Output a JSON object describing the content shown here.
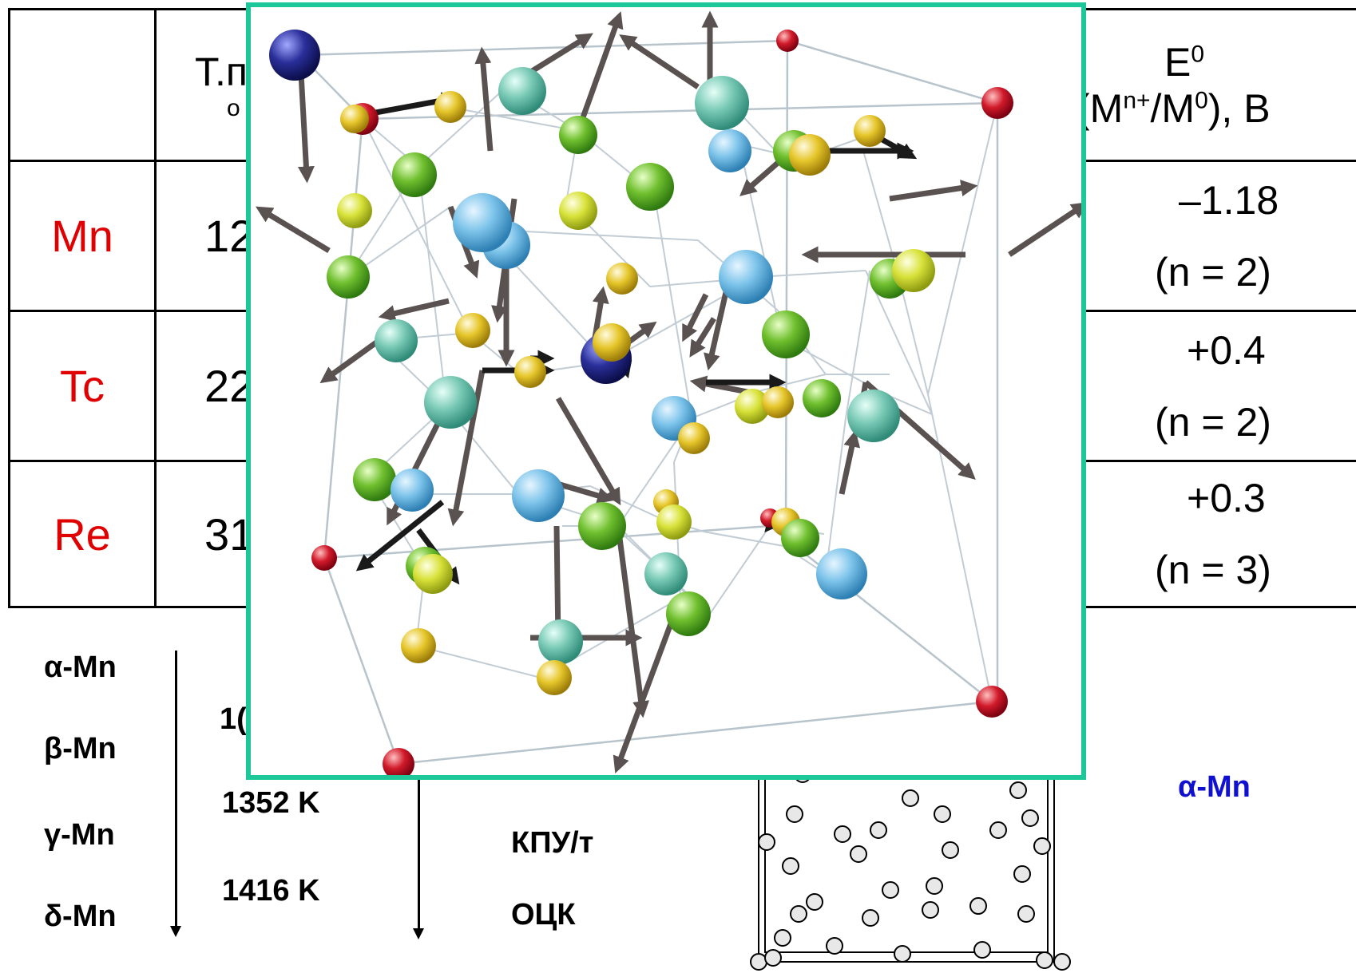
{
  "table": {
    "header": {
      "col2_line1": "T.п",
      "col2_line2": "о",
      "e0_line1": "E",
      "e0_sup": "0",
      "e0_line2_a": "(M",
      "e0_sup2": "n+",
      "e0_line2_b": "/M",
      "e0_sup3": "0",
      "e0_line2_c": "), B"
    },
    "rows": [
      {
        "element": "Mn",
        "partial": "12",
        "e0": "–1.18",
        "n": "(n = 2)"
      },
      {
        "element": "Tc",
        "partial": "22",
        "e0": "+0.4",
        "n": "(n = 2)"
      },
      {
        "element": "Re",
        "partial": "31",
        "e0": "+0.3",
        "n": "(n = 3)"
      }
    ]
  },
  "phases": [
    {
      "name": "α-Mn"
    },
    {
      "name": "β-Mn"
    },
    {
      "name": "γ-Mn"
    },
    {
      "name": "δ-Mn"
    }
  ],
  "temperatures": {
    "partial": "1(",
    "t3": "1352 K",
    "t4": "1416 K"
  },
  "structures": {
    "s3": "КПУ/т",
    "s4": "ОЦК"
  },
  "right_label": "α-Mn",
  "colors": {
    "element_red": "#e00000",
    "overlay_border": "#1ec79a",
    "right_label_blue": "#1010d0"
  }
}
